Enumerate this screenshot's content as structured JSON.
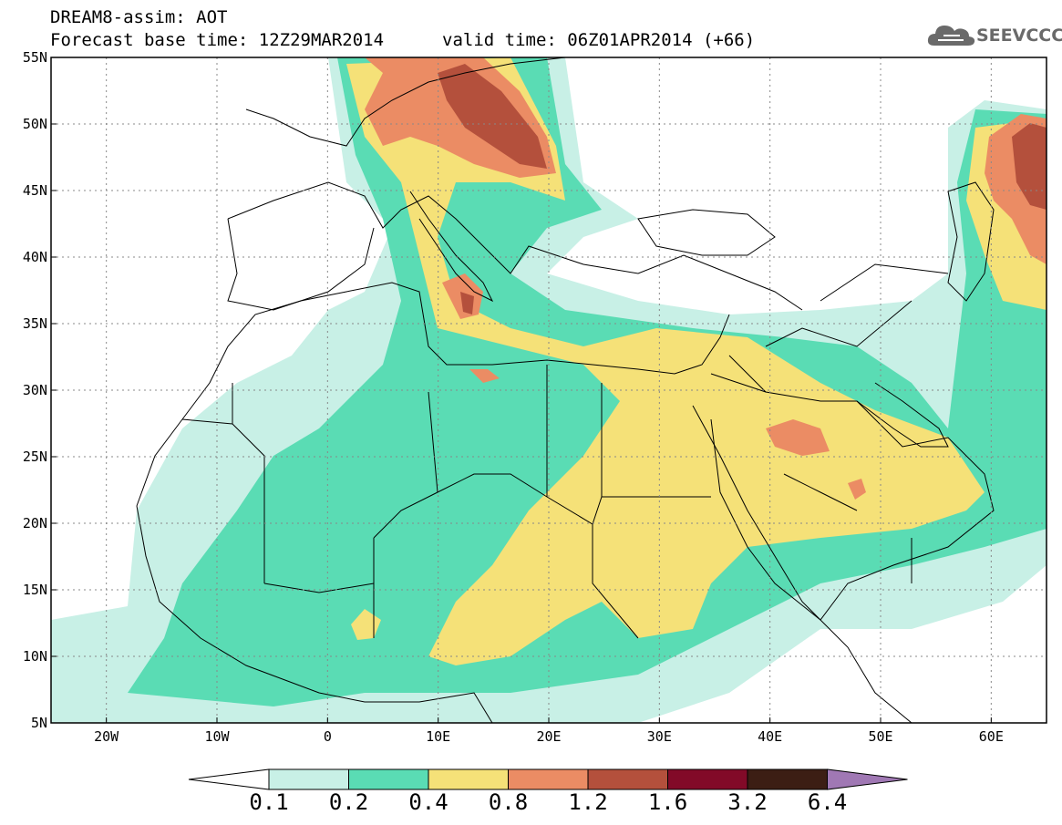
{
  "title": {
    "line1": "DREAM8-assim: AOT",
    "line2": "Forecast base time: 12Z29MAR2014",
    "valid": "valid time: 06Z01APR2014 (+66)"
  },
  "logo": {
    "text": "SEEVCCC",
    "icon": "cloud-icon",
    "color": "#6a6a6a"
  },
  "map": {
    "region": {
      "lon_min": -25,
      "lon_max": 65,
      "lat_min": 5,
      "lat_max": 55
    },
    "lat_ticks": [
      {
        "value": 55,
        "label": "55N"
      },
      {
        "value": 50,
        "label": "50N"
      },
      {
        "value": 45,
        "label": "45N"
      },
      {
        "value": 40,
        "label": "40N"
      },
      {
        "value": 35,
        "label": "35N"
      },
      {
        "value": 30,
        "label": "30N"
      },
      {
        "value": 25,
        "label": "25N"
      },
      {
        "value": 20,
        "label": "20N"
      },
      {
        "value": 15,
        "label": "15N"
      },
      {
        "value": 10,
        "label": "10N"
      },
      {
        "value": 5,
        "label": "5N"
      }
    ],
    "lon_ticks": [
      {
        "value": -20,
        "label": "20W"
      },
      {
        "value": -10,
        "label": "10W"
      },
      {
        "value": 0,
        "label": "0"
      },
      {
        "value": 10,
        "label": "10E"
      },
      {
        "value": 20,
        "label": "20E"
      },
      {
        "value": 30,
        "label": "30E"
      },
      {
        "value": 40,
        "label": "40E"
      },
      {
        "value": 50,
        "label": "50E"
      },
      {
        "value": 60,
        "label": "60E"
      }
    ],
    "grid": true
  },
  "colorbar": {
    "labels": [
      "0.1",
      "0.2",
      "0.4",
      "0.8",
      "1.2",
      "1.6",
      "3.2",
      "6.4"
    ],
    "under_color": "#ffffff",
    "colors": [
      "#c8f0e6",
      "#5adcb4",
      "#f5e178",
      "#eb8c64",
      "#b4503c",
      "#820a28",
      "#3c1e14"
    ],
    "over_color": "#a078b4"
  }
}
